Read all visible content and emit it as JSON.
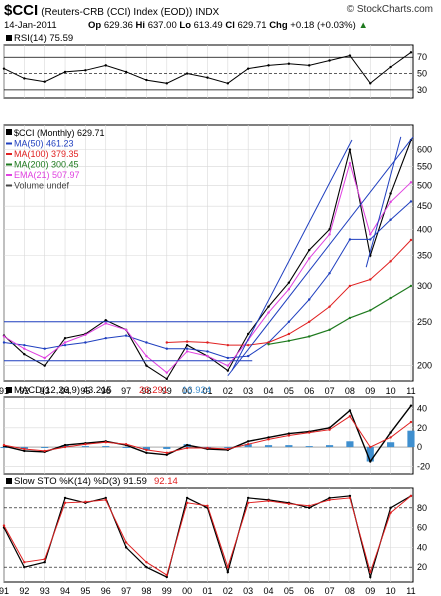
{
  "header": {
    "symbol": "$CCI",
    "name": "(Reuters-CRB (CCI) Index (EOD))",
    "exchange": "INDX",
    "brand": "© StockCharts.com",
    "date": "14-Jan-2011",
    "quote": {
      "open_label": "Op",
      "open": "629.36",
      "high_label": "Hi",
      "high": "637.00",
      "low_label": "Lo",
      "low": "613.49",
      "close_label": "Cl",
      "close": "629.71",
      "change_label": "Chg",
      "change": "+0.18 (+0.03%)",
      "direction": "up-arrow-icon"
    }
  },
  "colors": {
    "price": "#000000",
    "ma50": "#1f3fbf",
    "ma100": "#e02020",
    "ma200": "#1e7a1e",
    "ema21": "#e040e0",
    "trendline": "#1f3fbf",
    "rsi_fill": "#5a8a5a",
    "macd_hist": "#3f8fcf",
    "macd_signal": "#e02020",
    "sto_d": "#e02020"
  },
  "chart_data": [
    {
      "type": "line",
      "panel": "rsi",
      "legend": "RSI(14) 75.59",
      "ylim": [
        20,
        85
      ],
      "y_ticks": [
        "70",
        "50",
        "30"
      ],
      "x_range": [
        1991,
        2011.1
      ],
      "series": [
        {
          "name": "RSI(14)",
          "x": [
            1991,
            1992,
            1993,
            1994,
            1995,
            1996,
            1997,
            1998,
            1999,
            2000,
            2001,
            2002,
            2003,
            2004,
            2005,
            2006,
            2007,
            2008,
            2009,
            2010,
            2011
          ],
          "values": [
            56,
            44,
            40,
            52,
            54,
            60,
            52,
            42,
            38,
            50,
            45,
            38,
            56,
            60,
            62,
            60,
            66,
            72,
            38,
            58,
            76
          ]
        }
      ]
    },
    {
      "type": "line",
      "panel": "price",
      "legend": "$CCI (Monthly) 629.71",
      "scale": "log",
      "ylim": [
        185,
        680
      ],
      "y_ticks": [
        "600",
        "550",
        "500",
        "450",
        "400",
        "350",
        "300",
        "250",
        "200"
      ],
      "x_range": [
        1991,
        2011.1
      ],
      "x_tick_labels": [
        "91",
        "92",
        "93",
        "94",
        "95",
        "96",
        "97",
        "98",
        "99",
        "00",
        "01",
        "02",
        "03",
        "04",
        "05",
        "06",
        "07",
        "08",
        "09",
        "10",
        "11"
      ],
      "x": [
        1991,
        1992,
        1993,
        1994,
        1995,
        1996,
        1997,
        1998,
        1999,
        2000,
        2001,
        2002,
        2003,
        2004,
        2005,
        2006,
        2007,
        2008,
        2009,
        2010,
        2011
      ],
      "series": [
        {
          "name": "$CCI (Monthly)",
          "values": [
            233,
            212,
            200,
            230,
            235,
            252,
            240,
            200,
            187,
            222,
            210,
            195,
            235,
            270,
            305,
            360,
            400,
            600,
            350,
            480,
            630
          ]
        },
        {
          "name": "MA(50) 461.23",
          "values": [
            225,
            222,
            218,
            222,
            225,
            230,
            233,
            225,
            218,
            218,
            215,
            208,
            210,
            225,
            250,
            280,
            320,
            380,
            380,
            420,
            461
          ]
        },
        {
          "name": "MA(100) 379.35",
          "values": [
            null,
            null,
            null,
            null,
            null,
            null,
            null,
            null,
            225,
            226,
            225,
            222,
            222,
            225,
            235,
            250,
            270,
            300,
            310,
            340,
            379
          ]
        },
        {
          "name": "MA(200) 300.45",
          "values": [
            null,
            null,
            null,
            null,
            null,
            null,
            null,
            null,
            null,
            null,
            null,
            null,
            null,
            223,
            227,
            232,
            240,
            255,
            265,
            282,
            300
          ]
        },
        {
          "name": "EMA(21) 507.97",
          "values": [
            232,
            218,
            208,
            225,
            234,
            248,
            240,
            210,
            193,
            215,
            210,
            200,
            228,
            262,
            295,
            345,
            390,
            560,
            390,
            460,
            508
          ]
        }
      ],
      "volume_label": "Volume undef"
    },
    {
      "type": "line",
      "panel": "macd",
      "legend": [
        "MACD(12,26,9) 43.215",
        "26.291",
        "16.924"
      ],
      "ylim": [
        -28,
        52
      ],
      "y_ticks": [
        "40",
        "20",
        "0",
        "-20"
      ],
      "x_range": [
        1991,
        2011.1
      ],
      "x": [
        1991,
        1992,
        1993,
        1994,
        1995,
        1996,
        1997,
        1998,
        1999,
        2000,
        2001,
        2002,
        2003,
        2004,
        2005,
        2006,
        2007,
        2008,
        2009,
        2010,
        2011
      ],
      "series": [
        {
          "name": "MACD(12,26,9)",
          "values": [
            1,
            -4,
            -5,
            2,
            4,
            6,
            2,
            -6,
            -8,
            2,
            -2,
            -3,
            6,
            10,
            14,
            16,
            20,
            38,
            -15,
            15,
            43
          ]
        },
        {
          "name": "Signal",
          "values": [
            2,
            -2,
            -4,
            0,
            3,
            5,
            3,
            -3,
            -6,
            -1,
            -1,
            -2,
            3,
            8,
            12,
            15,
            18,
            32,
            0,
            10,
            26
          ]
        },
        {
          "name": "Histogram",
          "values": [
            -1,
            -2,
            -1,
            2,
            1,
            1,
            -1,
            -3,
            -2,
            3,
            -1,
            -1,
            3,
            2,
            2,
            1,
            2,
            6,
            -15,
            5,
            17
          ]
        }
      ]
    },
    {
      "type": "line",
      "panel": "sto",
      "legend": [
        "Slow STO %K(14) %D(3) 91.59",
        "92.14"
      ],
      "ylim": [
        5,
        100
      ],
      "y_ticks": [
        "80",
        "60",
        "40",
        "20"
      ],
      "x_range": [
        1991,
        2011.1
      ],
      "x_tick_labels": [
        "91",
        "92",
        "93",
        "94",
        "95",
        "96",
        "97",
        "98",
        "99",
        "00",
        "01",
        "02",
        "03",
        "04",
        "05",
        "06",
        "07",
        "08",
        "09",
        "10",
        "11"
      ],
      "x": [
        1991,
        1992,
        1993,
        1994,
        1995,
        1996,
        1997,
        1998,
        1999,
        2000,
        2001,
        2002,
        2003,
        2004,
        2005,
        2006,
        2007,
        2008,
        2009,
        2010,
        2011
      ],
      "series": [
        {
          "name": "%K",
          "values": [
            60,
            20,
            25,
            90,
            85,
            90,
            40,
            20,
            10,
            90,
            80,
            15,
            90,
            88,
            85,
            80,
            90,
            92,
            10,
            80,
            92
          ]
        },
        {
          "name": "%D",
          "values": [
            62,
            25,
            28,
            85,
            86,
            88,
            45,
            25,
            12,
            85,
            82,
            20,
            85,
            87,
            84,
            82,
            88,
            90,
            15,
            75,
            92
          ]
        }
      ]
    }
  ]
}
